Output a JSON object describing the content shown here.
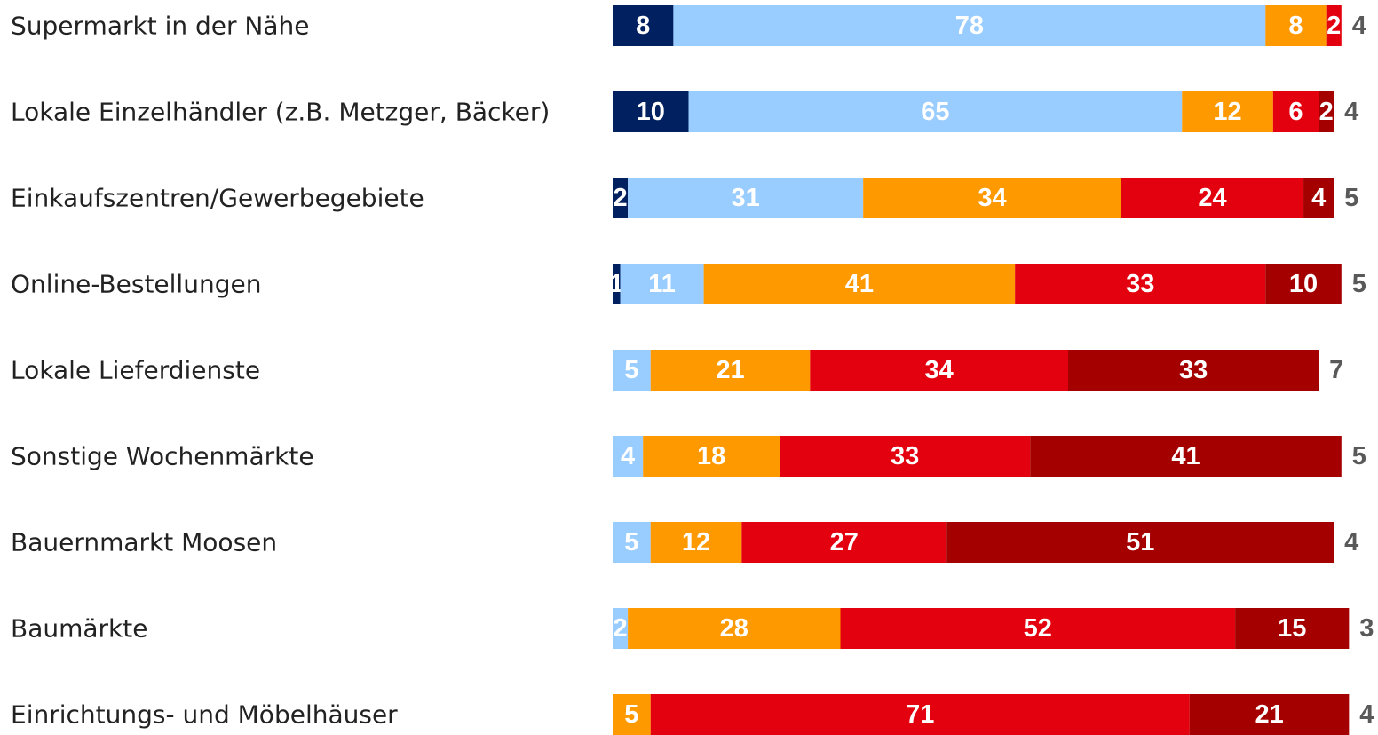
{
  "chart_data": {
    "type": "stacked-bar-horizontal",
    "categories": [
      "Supermarkt in der Nähe",
      "Lokale Einzelhändler (z.B. Metzger, Bäcker)",
      "Einkaufszentren/Gewerbegebiete",
      "Online-Bestellungen",
      "Lokale Lieferdienste",
      "Sonstige Wochenmärkte",
      "Bauernmarkt Moosen",
      "Baumärkte",
      "Einrichtungs- und Möbelhäuser"
    ],
    "series": [
      {
        "color": "#002060",
        "values": [
          8,
          10,
          2,
          1,
          null,
          null,
          null,
          null,
          null
        ]
      },
      {
        "color": "#99ccff",
        "values": [
          78,
          65,
          31,
          11,
          5,
          4,
          5,
          2,
          null
        ]
      },
      {
        "color": "#ff9900",
        "values": [
          8,
          12,
          34,
          41,
          21,
          18,
          12,
          28,
          5
        ]
      },
      {
        "color": "#e3000f",
        "values": [
          2,
          6,
          24,
          33,
          34,
          33,
          27,
          52,
          71
        ]
      },
      {
        "color": "#a50000",
        "values": [
          null,
          2,
          4,
          10,
          33,
          41,
          51,
          15,
          21
        ]
      },
      {
        "color": "#595959",
        "values": [
          4,
          4,
          5,
          5,
          7,
          5,
          4,
          3,
          4
        ]
      }
    ]
  }
}
